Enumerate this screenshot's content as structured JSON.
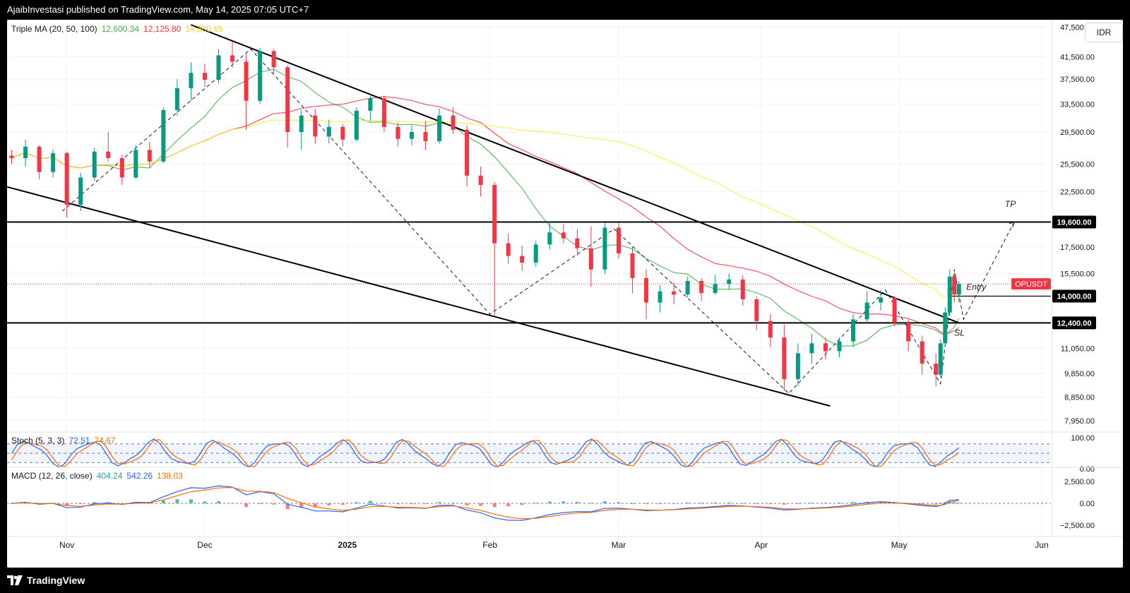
{
  "header": {
    "publisher_line": "AjaibInvestasi published on TradingView.com, May 14, 2025 07:05 UTC+7"
  },
  "footer": {
    "brand": "TradingView"
  },
  "currency_button": "IDR",
  "indicators": {
    "triple_ma": {
      "name": "Triple MA (20, 50, 100)",
      "v1": "12,600.34",
      "v2": "12,125.80",
      "v3": "14,300.65",
      "c1": "#4caf50",
      "c2": "#f23645",
      "c3": "#ffeb3b"
    },
    "stoch": {
      "name": "Stoch (5, 3, 3)",
      "k": "72.51",
      "d": "74.67",
      "ck": "#2962ff",
      "cd": "#ff6d00"
    },
    "macd": {
      "name": "MACD (12, 26, close)",
      "hist": "404.24",
      "macd": "542.26",
      "signal": "138.03",
      "ch": "#26a69a",
      "cm": "#2962ff",
      "cs": "#ff6d00"
    }
  },
  "colors": {
    "up": "#089981",
    "down": "#f23645",
    "ma20": "#4caf50",
    "ma50": "#f23645",
    "ma100": "#ffeb3b"
  },
  "axis": {
    "price_ticks": [
      "47,500.00",
      "41,500.00",
      "37,500.00",
      "33,500.00",
      "29,500.00",
      "25,500.00",
      "22,500.00",
      "17,500.00",
      "15,500.00",
      "11,050.00",
      "9,850.00",
      "8,850.00",
      "7,950.00"
    ],
    "price_labels": [
      {
        "text": "19,600.00",
        "style": "black"
      },
      {
        "text": "OPUSDT",
        "style": "red"
      },
      {
        "text": "14,000.00",
        "style": "black"
      },
      {
        "text": "12,400.00",
        "style": "black"
      }
    ],
    "stoch_ticks": [
      "100.00",
      "0.00"
    ],
    "macd_ticks": [
      "2,500.00",
      "0.00",
      "−2,500.00"
    ],
    "time_labels": [
      "Nov",
      "Dec",
      "2025",
      "Feb",
      "Mar",
      "Apr",
      "May",
      "Jun"
    ]
  },
  "annotations": {
    "tp": "TP",
    "entry": "Entry",
    "sl": "SL"
  },
  "chart_data": {
    "type": "candlestick",
    "symbol": "OPUSDT",
    "currency": "IDR",
    "scale": "log",
    "x_range": [
      "2024-10-19",
      "2025-06-03"
    ],
    "ylim": [
      7600,
      48500
    ],
    "horizontal_levels": [
      19600,
      14000,
      12400
    ],
    "current_price": 14800,
    "channel": {
      "upper": [
        [
          "2024-11-28",
          48000
        ],
        [
          "2025-05-14",
          12400
        ]
      ],
      "lower": [
        [
          "2024-10-19",
          23000
        ],
        [
          "2025-04-16",
          8500
        ]
      ]
    },
    "swing_path": [
      [
        "2024-10-31",
        20600
      ],
      [
        "2024-12-11",
        43000
      ],
      [
        "2025-02-01",
        12900
      ],
      [
        "2025-02-28",
        19000
      ],
      [
        "2025-04-07",
        9000
      ],
      [
        "2025-04-28",
        14400
      ],
      [
        "2025-05-10",
        9400
      ],
      [
        "2025-05-13",
        15800
      ],
      [
        "2025-05-15",
        12600
      ],
      [
        "2025-05-26",
        19600
      ]
    ],
    "candles": [
      {
        "d": "2024-10-20",
        "o": 26500,
        "h": 27200,
        "l": 25500,
        "c": 26200
      },
      {
        "d": "2024-10-23",
        "o": 26200,
        "h": 28500,
        "l": 25200,
        "c": 27600
      },
      {
        "d": "2024-10-26",
        "o": 27600,
        "h": 27800,
        "l": 23800,
        "c": 24600
      },
      {
        "d": "2024-10-29",
        "o": 24600,
        "h": 27300,
        "l": 24000,
        "c": 26800
      },
      {
        "d": "2024-11-01",
        "o": 26800,
        "h": 27000,
        "l": 20000,
        "c": 21200
      },
      {
        "d": "2024-11-04",
        "o": 21200,
        "h": 24500,
        "l": 20600,
        "c": 24000
      },
      {
        "d": "2024-11-07",
        "o": 24000,
        "h": 27500,
        "l": 23600,
        "c": 27000
      },
      {
        "d": "2024-11-10",
        "o": 27000,
        "h": 29500,
        "l": 25800,
        "c": 26200
      },
      {
        "d": "2024-11-13",
        "o": 26200,
        "h": 26600,
        "l": 23200,
        "c": 24000
      },
      {
        "d": "2024-11-16",
        "o": 24000,
        "h": 27800,
        "l": 23800,
        "c": 27200
      },
      {
        "d": "2024-11-19",
        "o": 27200,
        "h": 28200,
        "l": 25100,
        "c": 25800
      },
      {
        "d": "2024-11-22",
        "o": 25800,
        "h": 33000,
        "l": 25600,
        "c": 32600
      },
      {
        "d": "2024-11-25",
        "o": 32600,
        "h": 37500,
        "l": 31800,
        "c": 36000
      },
      {
        "d": "2024-11-28",
        "o": 36000,
        "h": 40500,
        "l": 34000,
        "c": 38600
      },
      {
        "d": "2024-12-01",
        "o": 38600,
        "h": 40200,
        "l": 36200,
        "c": 37400
      },
      {
        "d": "2024-12-04",
        "o": 37400,
        "h": 43000,
        "l": 36800,
        "c": 41800
      },
      {
        "d": "2024-12-07",
        "o": 41800,
        "h": 44500,
        "l": 39500,
        "c": 40600
      },
      {
        "d": "2024-12-10",
        "o": 40600,
        "h": 42000,
        "l": 29800,
        "c": 34000
      },
      {
        "d": "2024-12-13",
        "o": 34000,
        "h": 43200,
        "l": 33500,
        "c": 42600
      },
      {
        "d": "2024-12-16",
        "o": 42600,
        "h": 43000,
        "l": 38500,
        "c": 39600
      },
      {
        "d": "2024-12-19",
        "o": 39600,
        "h": 40000,
        "l": 27500,
        "c": 29500
      },
      {
        "d": "2024-12-22",
        "o": 29500,
        "h": 32600,
        "l": 27200,
        "c": 31800
      },
      {
        "d": "2024-12-25",
        "o": 31800,
        "h": 32800,
        "l": 28000,
        "c": 28900
      },
      {
        "d": "2024-12-28",
        "o": 28900,
        "h": 31200,
        "l": 28000,
        "c": 30200
      },
      {
        "d": "2024-12-31",
        "o": 30200,
        "h": 30600,
        "l": 27600,
        "c": 28500
      },
      {
        "d": "2025-01-03",
        "o": 28500,
        "h": 33000,
        "l": 28200,
        "c": 32500
      },
      {
        "d": "2025-01-06",
        "o": 32500,
        "h": 35000,
        "l": 31000,
        "c": 34400
      },
      {
        "d": "2025-01-09",
        "o": 34400,
        "h": 34800,
        "l": 29500,
        "c": 30200
      },
      {
        "d": "2025-01-12",
        "o": 30200,
        "h": 30800,
        "l": 27600,
        "c": 28600
      },
      {
        "d": "2025-01-15",
        "o": 28600,
        "h": 30400,
        "l": 27800,
        "c": 29500
      },
      {
        "d": "2025-01-18",
        "o": 29500,
        "h": 31000,
        "l": 27200,
        "c": 28300
      },
      {
        "d": "2025-01-21",
        "o": 28300,
        "h": 32800,
        "l": 28000,
        "c": 31800
      },
      {
        "d": "2025-01-24",
        "o": 31800,
        "h": 33000,
        "l": 29200,
        "c": 29800
      },
      {
        "d": "2025-01-27",
        "o": 29800,
        "h": 30400,
        "l": 23000,
        "c": 24200
      },
      {
        "d": "2025-01-30",
        "o": 24200,
        "h": 25200,
        "l": 22000,
        "c": 23200
      },
      {
        "d": "2025-02-02",
        "o": 23200,
        "h": 23500,
        "l": 12800,
        "c": 17800
      },
      {
        "d": "2025-02-05",
        "o": 17800,
        "h": 18600,
        "l": 16200,
        "c": 16800
      },
      {
        "d": "2025-02-08",
        "o": 16800,
        "h": 17600,
        "l": 15700,
        "c": 16300
      },
      {
        "d": "2025-02-11",
        "o": 16300,
        "h": 18000,
        "l": 16000,
        "c": 17700
      },
      {
        "d": "2025-02-14",
        "o": 17700,
        "h": 19600,
        "l": 17300,
        "c": 18700
      },
      {
        "d": "2025-02-17",
        "o": 18700,
        "h": 19400,
        "l": 17800,
        "c": 18200
      },
      {
        "d": "2025-02-20",
        "o": 18200,
        "h": 19000,
        "l": 16800,
        "c": 17400
      },
      {
        "d": "2025-02-23",
        "o": 17400,
        "h": 19200,
        "l": 14600,
        "c": 15800
      },
      {
        "d": "2025-02-26",
        "o": 15800,
        "h": 19500,
        "l": 15500,
        "c": 19100
      },
      {
        "d": "2025-03-01",
        "o": 19100,
        "h": 19500,
        "l": 16600,
        "c": 17000
      },
      {
        "d": "2025-03-04",
        "o": 17000,
        "h": 17500,
        "l": 14200,
        "c": 15200
      },
      {
        "d": "2025-03-07",
        "o": 15200,
        "h": 15800,
        "l": 12600,
        "c": 13600
      },
      {
        "d": "2025-03-10",
        "o": 13600,
        "h": 14700,
        "l": 13000,
        "c": 14300
      },
      {
        "d": "2025-03-13",
        "o": 14300,
        "h": 14900,
        "l": 13500,
        "c": 14100
      },
      {
        "d": "2025-03-16",
        "o": 14100,
        "h": 15300,
        "l": 13900,
        "c": 15000
      },
      {
        "d": "2025-03-19",
        "o": 15000,
        "h": 15200,
        "l": 13700,
        "c": 14200
      },
      {
        "d": "2025-03-22",
        "o": 14200,
        "h": 15400,
        "l": 14100,
        "c": 14800
      },
      {
        "d": "2025-03-25",
        "o": 14800,
        "h": 15500,
        "l": 14400,
        "c": 15100
      },
      {
        "d": "2025-03-28",
        "o": 15100,
        "h": 15400,
        "l": 13400,
        "c": 13800
      },
      {
        "d": "2025-03-31",
        "o": 13800,
        "h": 14000,
        "l": 12000,
        "c": 12500
      },
      {
        "d": "2025-04-03",
        "o": 12500,
        "h": 12900,
        "l": 11100,
        "c": 11600
      },
      {
        "d": "2025-04-06",
        "o": 11600,
        "h": 12300,
        "l": 9100,
        "c": 9600
      },
      {
        "d": "2025-04-09",
        "o": 9600,
        "h": 11300,
        "l": 9300,
        "c": 10800
      },
      {
        "d": "2025-04-12",
        "o": 10800,
        "h": 11800,
        "l": 10300,
        "c": 11300
      },
      {
        "d": "2025-04-15",
        "o": 11300,
        "h": 11600,
        "l": 10500,
        "c": 10900
      },
      {
        "d": "2025-04-18",
        "o": 10900,
        "h": 11600,
        "l": 10600,
        "c": 11400
      },
      {
        "d": "2025-04-21",
        "o": 11400,
        "h": 12900,
        "l": 11100,
        "c": 12600
      },
      {
        "d": "2025-04-24",
        "o": 12600,
        "h": 14300,
        "l": 12400,
        "c": 13600
      },
      {
        "d": "2025-04-27",
        "o": 13600,
        "h": 14400,
        "l": 13100,
        "c": 13900
      },
      {
        "d": "2025-04-30",
        "o": 13900,
        "h": 14000,
        "l": 12200,
        "c": 12400
      },
      {
        "d": "2025-05-03",
        "o": 12400,
        "h": 12600,
        "l": 10900,
        "c": 11400
      },
      {
        "d": "2025-05-06",
        "o": 11400,
        "h": 11700,
        "l": 9800,
        "c": 10300
      },
      {
        "d": "2025-05-09",
        "o": 10300,
        "h": 10800,
        "l": 9300,
        "c": 9800
      },
      {
        "d": "2025-05-10",
        "o": 9800,
        "h": 11500,
        "l": 9700,
        "c": 11300
      },
      {
        "d": "2025-05-11",
        "o": 11300,
        "h": 13300,
        "l": 11200,
        "c": 13000
      },
      {
        "d": "2025-05-12",
        "o": 13000,
        "h": 15800,
        "l": 12800,
        "c": 15300
      },
      {
        "d": "2025-05-13",
        "o": 15300,
        "h": 15600,
        "l": 13600,
        "c": 14100
      },
      {
        "d": "2025-05-14",
        "o": 14100,
        "h": 15000,
        "l": 13600,
        "c": 14800
      }
    ]
  }
}
